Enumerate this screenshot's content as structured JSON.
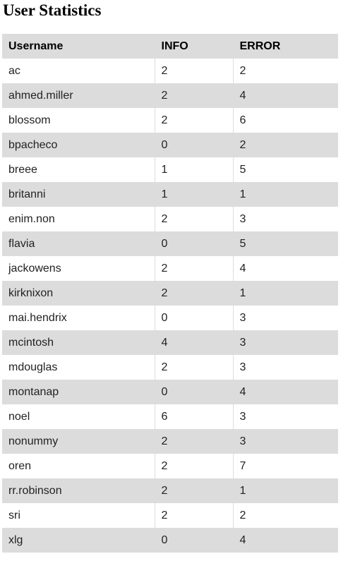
{
  "page": {
    "title": "User Statistics"
  },
  "table": {
    "columns": [
      "Username",
      "INFO",
      "ERROR"
    ],
    "rows": [
      {
        "username": "ac",
        "info": "2",
        "error": "2"
      },
      {
        "username": "ahmed.miller",
        "info": "2",
        "error": "4"
      },
      {
        "username": "blossom",
        "info": "2",
        "error": "6"
      },
      {
        "username": "bpacheco",
        "info": "0",
        "error": "2"
      },
      {
        "username": "breee",
        "info": "1",
        "error": "5"
      },
      {
        "username": "britanni",
        "info": "1",
        "error": "1"
      },
      {
        "username": "enim.non",
        "info": "2",
        "error": "3"
      },
      {
        "username": "flavia",
        "info": "0",
        "error": "5"
      },
      {
        "username": "jackowens",
        "info": "2",
        "error": "4"
      },
      {
        "username": "kirknixon",
        "info": "2",
        "error": "1"
      },
      {
        "username": "mai.hendrix",
        "info": "0",
        "error": "3"
      },
      {
        "username": "mcintosh",
        "info": "4",
        "error": "3"
      },
      {
        "username": "mdouglas",
        "info": "2",
        "error": "3"
      },
      {
        "username": "montanap",
        "info": "0",
        "error": "4"
      },
      {
        "username": "noel",
        "info": "6",
        "error": "3"
      },
      {
        "username": "nonummy",
        "info": "2",
        "error": "3"
      },
      {
        "username": "oren",
        "info": "2",
        "error": "7"
      },
      {
        "username": "rr.robinson",
        "info": "2",
        "error": "1"
      },
      {
        "username": "sri",
        "info": "2",
        "error": "2"
      },
      {
        "username": "xlg",
        "info": "0",
        "error": "4"
      }
    ]
  },
  "colors": {
    "header_background": "#dcdcdc",
    "stripe_background": "#dcdcdc",
    "row_background": "#ffffff"
  }
}
